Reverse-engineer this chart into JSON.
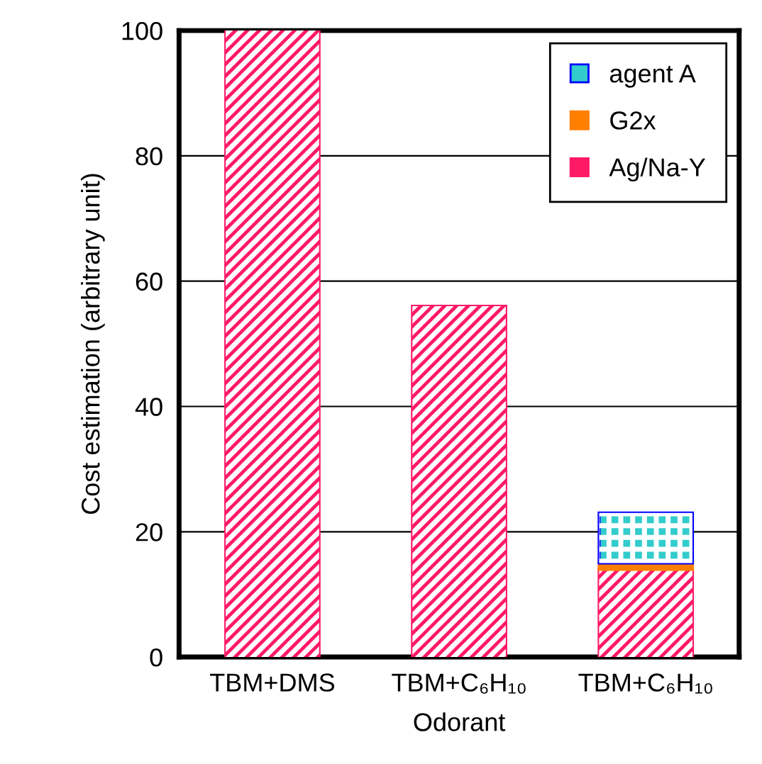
{
  "chart_data": {
    "type": "bar",
    "stacked": true,
    "xlabel": "Odorant",
    "ylabel": "Cost estimation (arbitrary unit)",
    "categories": [
      "TBM+DMS",
      "TBM+C₆H₁₀",
      "TBM+C₆H₁₀"
    ],
    "series": [
      {
        "name": "Ag/Na-Y",
        "color": "#ff1a66",
        "values": [
          100,
          56,
          14
        ]
      },
      {
        "name": "G2x",
        "color": "#ff8000",
        "values": [
          0,
          0,
          1
        ]
      },
      {
        "name": "agent A",
        "color": "#33cccc",
        "values": [
          0,
          0,
          8
        ]
      }
    ],
    "ylim": [
      0,
      100
    ],
    "yticks": [
      0,
      20,
      40,
      60,
      80,
      100
    ],
    "grid": "y",
    "legend": "top right"
  }
}
